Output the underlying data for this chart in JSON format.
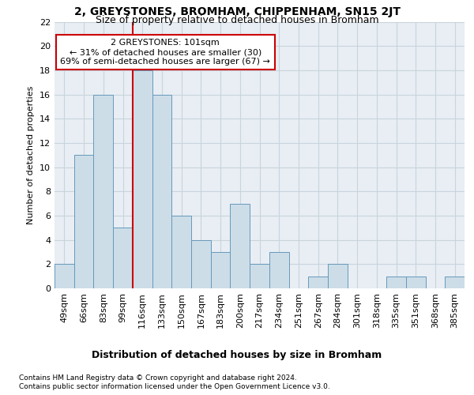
{
  "title": "2, GREYSTONES, BROMHAM, CHIPPENHAM, SN15 2JT",
  "subtitle": "Size of property relative to detached houses in Bromham",
  "xlabel": "Distribution of detached houses by size in Bromham",
  "ylabel": "Number of detached properties",
  "footer_line1": "Contains HM Land Registry data © Crown copyright and database right 2024.",
  "footer_line2": "Contains public sector information licensed under the Open Government Licence v3.0.",
  "categories": [
    "49sqm",
    "66sqm",
    "83sqm",
    "99sqm",
    "116sqm",
    "133sqm",
    "150sqm",
    "167sqm",
    "183sqm",
    "200sqm",
    "217sqm",
    "234sqm",
    "251sqm",
    "267sqm",
    "284sqm",
    "301sqm",
    "318sqm",
    "335sqm",
    "351sqm",
    "368sqm",
    "385sqm"
  ],
  "values": [
    2,
    11,
    16,
    5,
    18,
    16,
    6,
    4,
    3,
    7,
    2,
    3,
    0,
    1,
    2,
    0,
    0,
    1,
    1,
    0,
    1
  ],
  "bar_color": "#ccdde8",
  "bar_edge_color": "#6699bb",
  "grid_color": "#c8d4dc",
  "bg_color": "#e8eef4",
  "subject_line_color": "#cc0000",
  "annotation_text_line1": "2 GREYSTONES: 101sqm",
  "annotation_text_line2": "← 31% of detached houses are smaller (30)",
  "annotation_text_line3": "69% of semi-detached houses are larger (67) →",
  "annotation_box_color": "#ffffff",
  "annotation_border_color": "#cc0000",
  "ylim": [
    0,
    22
  ],
  "yticks": [
    0,
    2,
    4,
    6,
    8,
    10,
    12,
    14,
    16,
    18,
    20,
    22
  ],
  "title_fontsize": 10,
  "subtitle_fontsize": 9,
  "xlabel_fontsize": 9,
  "ylabel_fontsize": 8,
  "tick_fontsize": 8,
  "annotation_fontsize": 8,
  "footer_fontsize": 6.5
}
